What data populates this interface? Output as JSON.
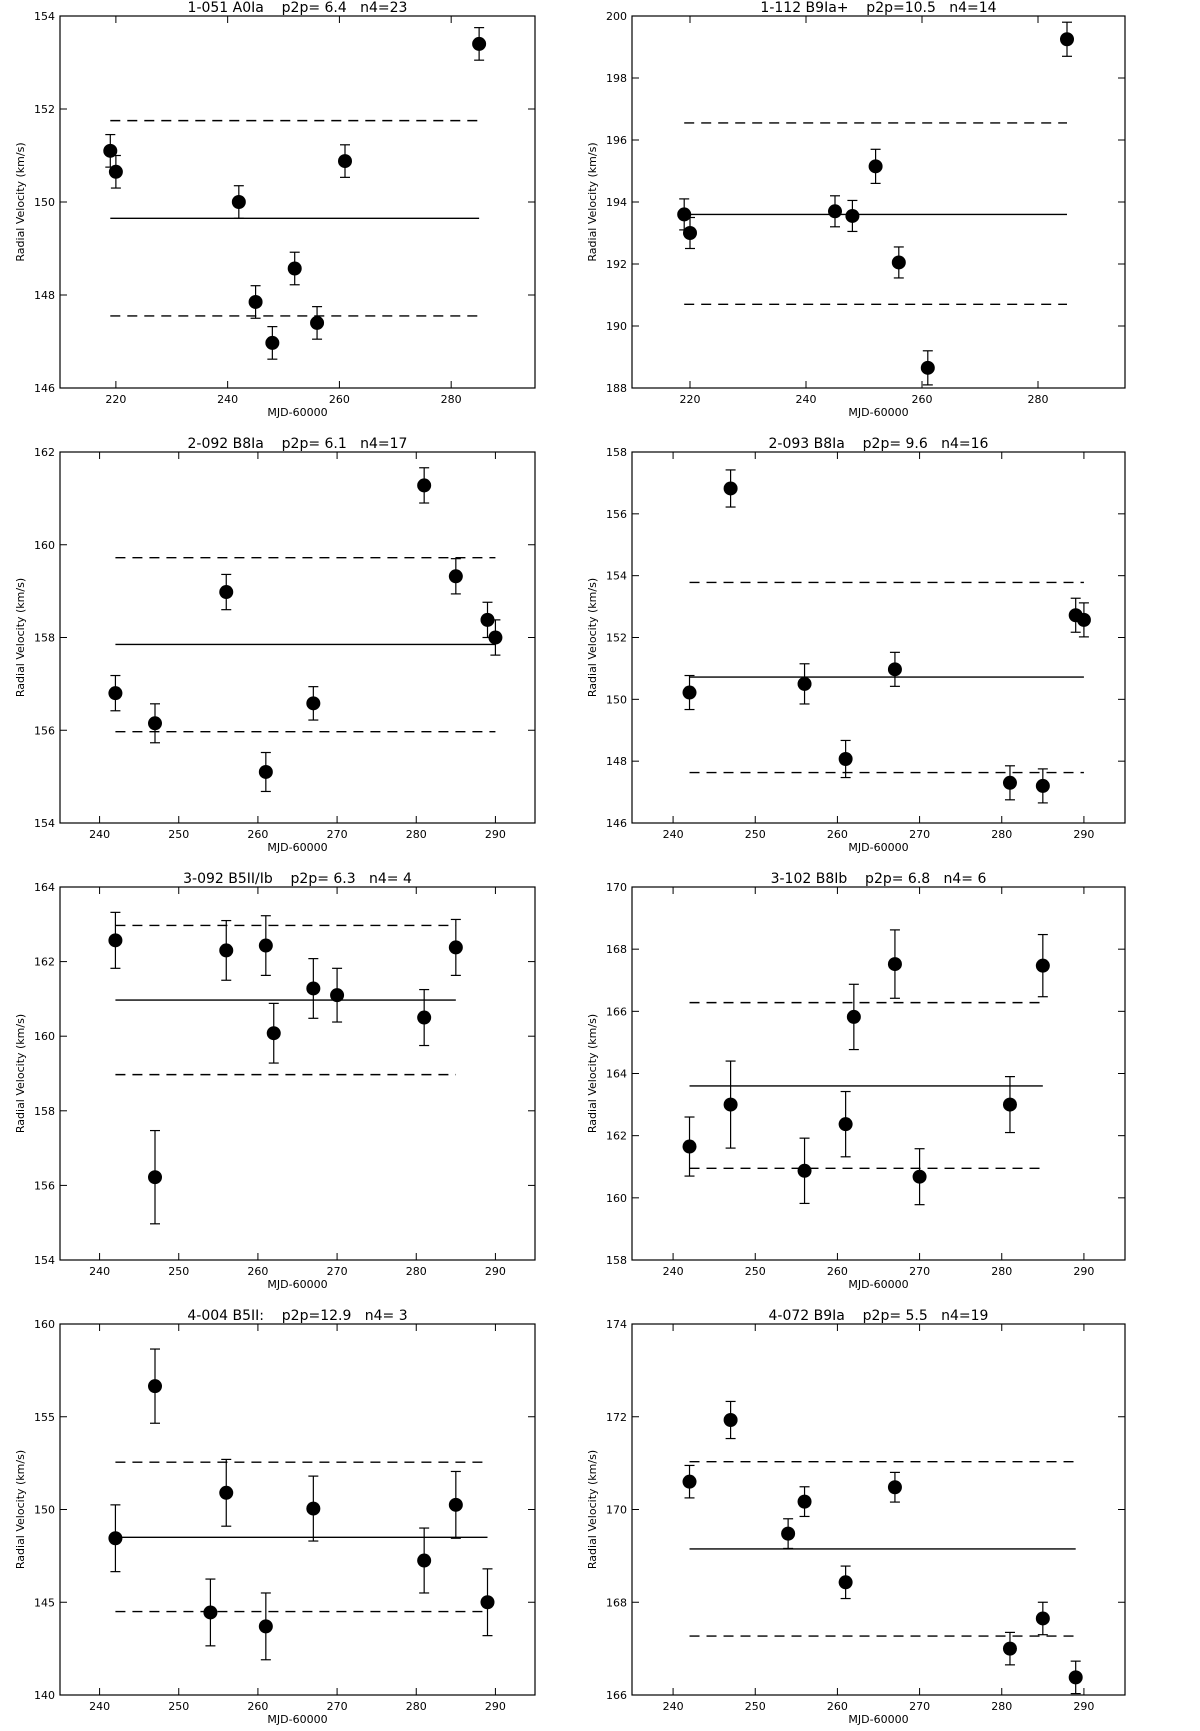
{
  "chart_data": [
    {
      "type": "scatter",
      "title": "1-051 A0Ia    p2p= 6.4   n4=23",
      "xlabel": "MJD-60000",
      "ylabel": "Radial Velocity (km/s)",
      "xlim": [
        210,
        295
      ],
      "ylim": [
        146,
        154
      ],
      "xticks": [
        220,
        240,
        260,
        280
      ],
      "yticks": [
        146,
        148,
        150,
        152,
        154
      ],
      "x": [
        219,
        220,
        242,
        245,
        248,
        252,
        256,
        261,
        285
      ],
      "y": [
        151.1,
        150.65,
        150.0,
        147.85,
        146.97,
        148.57,
        147.4,
        150.88,
        153.4
      ],
      "yerr": [
        0.35,
        0.35,
        0.35,
        0.35,
        0.35,
        0.35,
        0.35,
        0.35,
        0.35
      ],
      "mean": 149.65,
      "lower": 147.55,
      "upper": 151.75,
      "line_x": [
        219,
        285
      ]
    },
    {
      "type": "scatter",
      "title": "1-112 B9Ia+    p2p=10.5   n4=14",
      "xlabel": "MJD-60000",
      "ylabel": "Radial Velocity (km/s)",
      "xlim": [
        210,
        295
      ],
      "ylim": [
        188,
        200
      ],
      "xticks": [
        220,
        240,
        260,
        280
      ],
      "yticks": [
        188,
        190,
        192,
        194,
        196,
        198,
        200
      ],
      "x": [
        219,
        220,
        245,
        248,
        252,
        256,
        261,
        285
      ],
      "y": [
        193.6,
        193.0,
        193.7,
        193.55,
        195.15,
        192.05,
        188.65,
        199.25
      ],
      "yerr": [
        0.5,
        0.5,
        0.5,
        0.5,
        0.55,
        0.5,
        0.55,
        0.55
      ],
      "mean": 193.6,
      "lower": 190.7,
      "upper": 196.55,
      "line_x": [
        219,
        285
      ]
    },
    {
      "type": "scatter",
      "title": "2-092 B8Ia    p2p= 6.1   n4=17",
      "xlabel": "MJD-60000",
      "ylabel": "Radial Velocity (km/s)",
      "xlim": [
        235,
        295
      ],
      "ylim": [
        154,
        162
      ],
      "xticks": [
        240,
        250,
        260,
        270,
        280,
        290
      ],
      "yticks": [
        154,
        156,
        158,
        160,
        162
      ],
      "x": [
        242,
        247,
        256,
        261,
        267,
        281,
        285,
        289,
        290
      ],
      "y": [
        156.8,
        156.15,
        158.98,
        155.1,
        156.58,
        161.28,
        159.32,
        158.38,
        158.0
      ],
      "yerr": [
        0.38,
        0.42,
        0.38,
        0.42,
        0.36,
        0.38,
        0.38,
        0.38,
        0.38
      ],
      "mean": 157.85,
      "lower": 155.97,
      "upper": 159.72,
      "line_x": [
        242,
        290
      ]
    },
    {
      "type": "scatter",
      "title": "2-093 B8Ia    p2p= 9.6   n4=16",
      "xlabel": "MJD-60000",
      "ylabel": "Radial Velocity (km/s)",
      "xlim": [
        235,
        295
      ],
      "ylim": [
        146,
        158
      ],
      "xticks": [
        240,
        250,
        260,
        270,
        280,
        290
      ],
      "yticks": [
        146,
        148,
        150,
        152,
        154,
        156,
        158
      ],
      "x": [
        242,
        247,
        256,
        261,
        267,
        281,
        285,
        289,
        290
      ],
      "y": [
        150.22,
        156.82,
        150.5,
        148.07,
        150.97,
        147.3,
        147.2,
        152.72,
        152.57
      ],
      "yerr": [
        0.55,
        0.6,
        0.65,
        0.6,
        0.55,
        0.55,
        0.55,
        0.55,
        0.55
      ],
      "mean": 150.72,
      "lower": 147.63,
      "upper": 153.78,
      "line_x": [
        242,
        290
      ]
    },
    {
      "type": "scatter",
      "title": "3-092 B5II/Ib    p2p= 6.3   n4= 4",
      "xlabel": "MJD-60000",
      "ylabel": "Radial Velocity (km/s)",
      "xlim": [
        235,
        295
      ],
      "ylim": [
        154,
        164
      ],
      "xticks": [
        240,
        250,
        260,
        270,
        280,
        290
      ],
      "yticks": [
        154,
        156,
        158,
        160,
        162,
        164
      ],
      "x": [
        242,
        247,
        256,
        261,
        262,
        267,
        270,
        281,
        285
      ],
      "y": [
        162.57,
        156.22,
        162.3,
        162.43,
        160.08,
        161.28,
        161.1,
        160.5,
        162.38
      ],
      "yerr": [
        0.75,
        1.25,
        0.8,
        0.8,
        0.8,
        0.8,
        0.72,
        0.75,
        0.75
      ],
      "mean": 160.97,
      "lower": 158.97,
      "upper": 162.97,
      "line_x": [
        242,
        285
      ]
    },
    {
      "type": "scatter",
      "title": "3-102 B8Ib    p2p= 6.8   n4= 6",
      "xlabel": "MJD-60000",
      "ylabel": "Radial Velocity (km/s)",
      "xlim": [
        235,
        295
      ],
      "ylim": [
        158,
        170
      ],
      "xticks": [
        240,
        250,
        260,
        270,
        280,
        290
      ],
      "yticks": [
        158,
        160,
        162,
        164,
        166,
        168,
        170
      ],
      "x": [
        242,
        247,
        256,
        261,
        262,
        267,
        270,
        281,
        285
      ],
      "y": [
        161.65,
        163.0,
        160.87,
        162.37,
        165.82,
        167.52,
        160.68,
        163.0,
        167.47
      ],
      "yerr": [
        0.95,
        1.4,
        1.05,
        1.05,
        1.05,
        1.1,
        0.9,
        0.9,
        1.0
      ],
      "mean": 163.6,
      "lower": 160.95,
      "upper": 166.28,
      "line_x": [
        242,
        285
      ]
    },
    {
      "type": "scatter",
      "title": "4-004 B5II:    p2p=12.9   n4= 3",
      "xlabel": "MJD-60000",
      "ylabel": "Radial Velocity (km/s)",
      "xlim": [
        235,
        295
      ],
      "ylim": [
        140,
        160
      ],
      "xticks": [
        240,
        250,
        260,
        270,
        280,
        290
      ],
      "yticks": [
        140,
        145,
        150,
        155,
        160
      ],
      "x": [
        242,
        247,
        254,
        256,
        261,
        267,
        281,
        285,
        289
      ],
      "y": [
        148.45,
        156.65,
        144.45,
        150.9,
        143.7,
        150.05,
        147.25,
        150.25,
        145.0
      ],
      "yerr": [
        1.8,
        2.0,
        1.8,
        1.8,
        1.8,
        1.75,
        1.75,
        1.8,
        1.8
      ],
      "mean": 148.5,
      "lower": 144.5,
      "upper": 152.55,
      "line_x": [
        242,
        289
      ]
    },
    {
      "type": "scatter",
      "title": "4-072 B9Ia    p2p= 5.5   n4=19",
      "xlabel": "MJD-60000",
      "ylabel": "Radial Velocity (km/s)",
      "xlim": [
        235,
        295
      ],
      "ylim": [
        166,
        174
      ],
      "xticks": [
        240,
        250,
        260,
        270,
        280,
        290
      ],
      "yticks": [
        166,
        168,
        170,
        172,
        174
      ],
      "x": [
        242,
        247,
        254,
        256,
        261,
        267,
        281,
        285,
        289
      ],
      "y": [
        170.6,
        171.93,
        169.48,
        170.17,
        168.43,
        170.48,
        167.0,
        167.65,
        166.38
      ],
      "yerr": [
        0.35,
        0.4,
        0.32,
        0.32,
        0.35,
        0.32,
        0.35,
        0.35,
        0.35
      ],
      "mean": 169.15,
      "lower": 167.27,
      "upper": 171.03,
      "line_x": [
        242,
        289
      ]
    }
  ]
}
